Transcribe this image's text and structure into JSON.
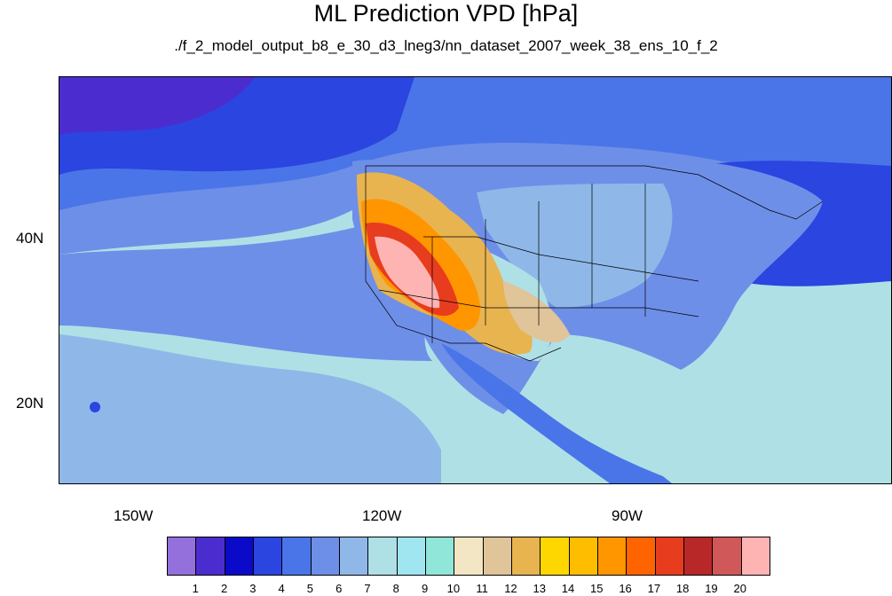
{
  "title": "ML Prediction VPD [hPa]",
  "subtitle": "./f_2_model_output_b8_e_30_d3_lneg3/nn_dataset_2007_week_38_ens_10_f_2",
  "axes": {
    "lat_labels": [
      "40N",
      "20N"
    ],
    "lon_labels": [
      "150W",
      "120W",
      "90W"
    ]
  },
  "colorbar": {
    "labels": [
      "1",
      "2",
      "3",
      "4",
      "5",
      "6",
      "7",
      "8",
      "9",
      "10",
      "11",
      "12",
      "13",
      "14",
      "15",
      "16",
      "17",
      "18",
      "19",
      "20"
    ],
    "colors": [
      "#9370db",
      "#4b2dcf",
      "#0a0ac8",
      "#2a45e0",
      "#4a75e8",
      "#6e8fe8",
      "#8fb8e8",
      "#afe0e6",
      "#a0e6f0",
      "#90e6d8",
      "#f2e6c4",
      "#e0c49a",
      "#e8b450",
      "#ffd700",
      "#ffbd00",
      "#ff9600",
      "#ff6400",
      "#e83c1e",
      "#b82828",
      "#d05858",
      "#ffb4b4"
    ]
  }
}
